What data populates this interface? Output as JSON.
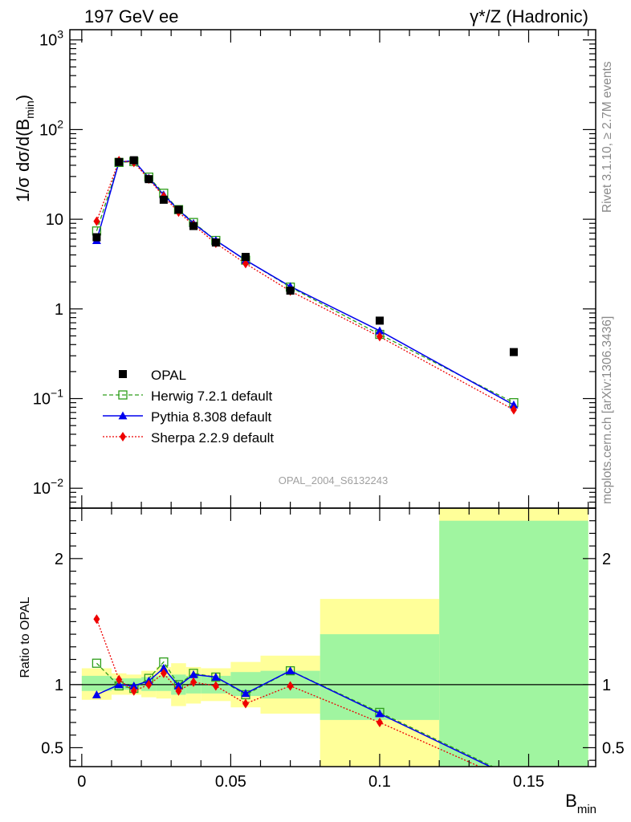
{
  "header": {
    "left": "197 GeV ee",
    "right": "γ*/Z (Hadronic)"
  },
  "side_labels": {
    "rivet": "Rivet 3.1.10, ≥ 2.7M events",
    "mcplots": "mcplots.cern.ch [arXiv:1306.3436]"
  },
  "analysis_id": "OPAL_2004_S6132243",
  "colors": {
    "opal": "#000000",
    "herwig": "#2e9e1a",
    "pythia": "#0000ee",
    "sherpa": "#ee0000",
    "band_inner": "#a0f5a0",
    "band_outer": "#ffff99"
  },
  "chart_data": [
    {
      "type": "scatter",
      "panel": "main",
      "ylabel_main": "1/σ dσ/d(B",
      "ylabel_sub": "min",
      "ylabel_close": ")",
      "yscale": "log",
      "ylim": [
        0.006,
        1300
      ],
      "xlim": [
        -0.004,
        0.1725
      ],
      "yticks": [
        {
          "value": 1000,
          "base": "10",
          "exp": "3"
        },
        {
          "value": 100,
          "base": "10",
          "exp": "2"
        },
        {
          "value": 10,
          "base": "10",
          "exp": ""
        },
        {
          "value": 1,
          "base": "1",
          "exp": ""
        },
        {
          "value": 0.1,
          "base": "10",
          "exp": "−1"
        },
        {
          "value": 0.01,
          "base": "10",
          "exp": "−2"
        }
      ],
      "x": [
        0.005,
        0.0125,
        0.0175,
        0.0225,
        0.0275,
        0.0325,
        0.0375,
        0.045,
        0.055,
        0.07,
        0.1,
        0.145
      ],
      "legend": [
        {
          "key": "opal",
          "label": "OPAL"
        },
        {
          "key": "herwig",
          "label": "Herwig 7.2.1 default"
        },
        {
          "key": "pythia",
          "label": "Pythia 8.308 default"
        },
        {
          "key": "sherpa",
          "label": "Sherpa 2.2.9 default"
        }
      ],
      "series": [
        {
          "name": "OPAL",
          "key": "opal",
          "values": [
            6.3,
            43.5,
            45.5,
            28.0,
            16.5,
            12.8,
            8.4,
            5.5,
            3.8,
            1.6,
            0.74,
            0.33
          ]
        },
        {
          "name": "Herwig 7.2.1 default",
          "key": "herwig",
          "values": [
            7.4,
            43.0,
            44.0,
            29.5,
            19.5,
            12.8,
            9.2,
            5.8,
            3.5,
            1.75,
            0.52,
            0.09
          ]
        },
        {
          "name": "Pythia 8.308 default",
          "key": "pythia",
          "values": [
            5.8,
            43.5,
            45.0,
            28.8,
            18.7,
            12.7,
            9.0,
            5.8,
            3.5,
            1.78,
            0.57,
            0.085
          ]
        },
        {
          "name": "Sherpa 2.2.9 default",
          "key": "sherpa",
          "values": [
            9.5,
            45.0,
            43.0,
            28.0,
            18.0,
            12.0,
            8.6,
            5.4,
            3.2,
            1.58,
            0.49,
            0.075
          ]
        }
      ]
    },
    {
      "type": "line",
      "panel": "ratio",
      "ylabel": "Ratio to OPAL",
      "xlabel_main": "B",
      "xlabel_sub": "min",
      "ylim": [
        0.35,
        2.4
      ],
      "xlim": [
        -0.004,
        0.1725
      ],
      "yticks": [
        {
          "value": 0.5,
          "label": "0.5"
        },
        {
          "value": 1,
          "label": "1"
        },
        {
          "value": 2,
          "label": "2"
        }
      ],
      "xticks": [
        {
          "value": 0,
          "label": "0"
        },
        {
          "value": 0.05,
          "label": "0.05"
        },
        {
          "value": 0.1,
          "label": "0.1"
        },
        {
          "value": 0.15,
          "label": "0.15"
        }
      ],
      "reference": 1,
      "bins": [
        {
          "lo": 0.0,
          "hi": 0.01,
          "inner": [
            0.95,
            1.07
          ],
          "outer": [
            0.88,
            1.13
          ]
        },
        {
          "lo": 0.01,
          "hi": 0.015,
          "inner": [
            0.96,
            1.05
          ],
          "outer": [
            0.92,
            1.09
          ]
        },
        {
          "lo": 0.015,
          "hi": 0.02,
          "inner": [
            0.96,
            1.05
          ],
          "outer": [
            0.92,
            1.08
          ]
        },
        {
          "lo": 0.02,
          "hi": 0.025,
          "inner": [
            0.95,
            1.06
          ],
          "outer": [
            0.9,
            1.11
          ]
        },
        {
          "lo": 0.025,
          "hi": 0.03,
          "inner": [
            0.95,
            1.07
          ],
          "outer": [
            0.89,
            1.14
          ]
        },
        {
          "lo": 0.03,
          "hi": 0.035,
          "inner": [
            0.92,
            1.08
          ],
          "outer": [
            0.83,
            1.17
          ]
        },
        {
          "lo": 0.035,
          "hi": 0.04,
          "inner": [
            0.93,
            1.07
          ],
          "outer": [
            0.85,
            1.14
          ]
        },
        {
          "lo": 0.04,
          "hi": 0.05,
          "inner": [
            0.93,
            1.07
          ],
          "outer": [
            0.87,
            1.13
          ]
        },
        {
          "lo": 0.05,
          "hi": 0.06,
          "inner": [
            0.91,
            1.1
          ],
          "outer": [
            0.82,
            1.18
          ]
        },
        {
          "lo": 0.06,
          "hi": 0.08,
          "inner": [
            0.89,
            1.11
          ],
          "outer": [
            0.77,
            1.23
          ]
        },
        {
          "lo": 0.08,
          "hi": 0.12,
          "inner": [
            0.72,
            1.4
          ],
          "outer": [
            0.35,
            1.68
          ]
        },
        {
          "lo": 0.12,
          "hi": 0.17,
          "inner": [
            0.35,
            2.3
          ],
          "outer": [
            0.35,
            2.4
          ]
        }
      ],
      "x": [
        0.005,
        0.0125,
        0.0175,
        0.0225,
        0.0275,
        0.0325,
        0.0375,
        0.045,
        0.055,
        0.07,
        0.1,
        0.145
      ],
      "series": [
        {
          "name": "Herwig 7.2.1 default",
          "key": "herwig",
          "values": [
            1.17,
            0.99,
            0.97,
            1.05,
            1.18,
            1.0,
            1.09,
            1.06,
            0.92,
            1.11,
            0.78,
            0.27
          ]
        },
        {
          "name": "Pythia 8.308 default",
          "key": "pythia",
          "values": [
            0.92,
            1.0,
            0.99,
            1.03,
            1.13,
            0.99,
            1.08,
            1.06,
            0.93,
            1.11,
            0.77,
            0.26
          ]
        },
        {
          "name": "Sherpa 2.2.9 default",
          "key": "sherpa",
          "values": [
            1.52,
            1.04,
            0.95,
            1.0,
            1.09,
            0.95,
            1.02,
            0.99,
            0.85,
            0.99,
            0.7,
            0.23
          ]
        }
      ]
    }
  ]
}
